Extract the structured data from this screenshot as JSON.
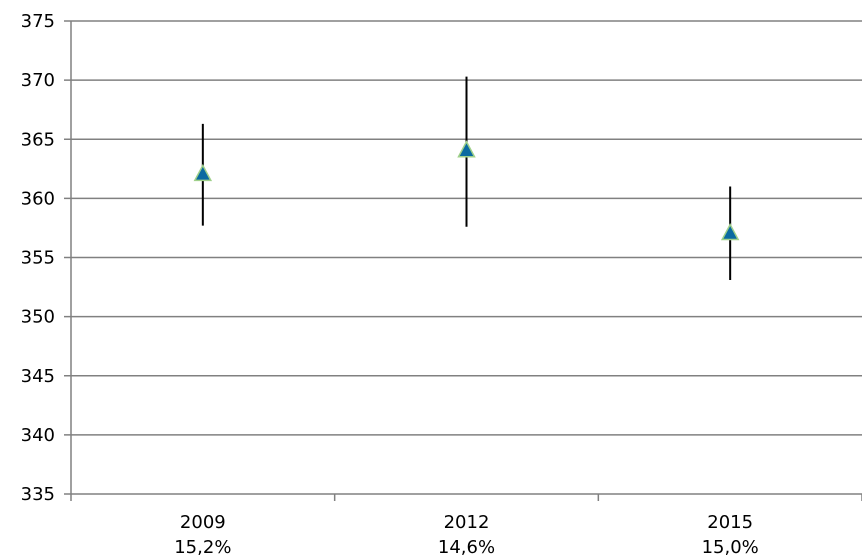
{
  "chart_data": {
    "type": "scatter",
    "title": "",
    "xlabel": "",
    "ylabel": "",
    "ylim": [
      335,
      375
    ],
    "yticks": [
      335,
      340,
      345,
      350,
      355,
      360,
      365,
      370,
      375
    ],
    "ytick_labels": [
      "335",
      "340",
      "345",
      "350",
      "355",
      "360",
      "365",
      "370",
      "375"
    ],
    "categories": [
      "2009",
      "2012",
      "2015"
    ],
    "category_sublabels": [
      "15,2%",
      "14,6%",
      "15,0%"
    ],
    "grid": true,
    "legend": "none",
    "series": [
      {
        "values": [
          362,
          364,
          357
        ],
        "error_low": [
          357.7,
          357.6,
          353.1
        ],
        "error_high": [
          366.3,
          370.3,
          361.0
        ],
        "marker": "triangle",
        "marker_color": "#0a6aa1",
        "marker_edge_color": "#9fd08a",
        "error_bar_color": "#000000"
      }
    ],
    "grid_color": "#808080",
    "axis_color": "#808080"
  }
}
